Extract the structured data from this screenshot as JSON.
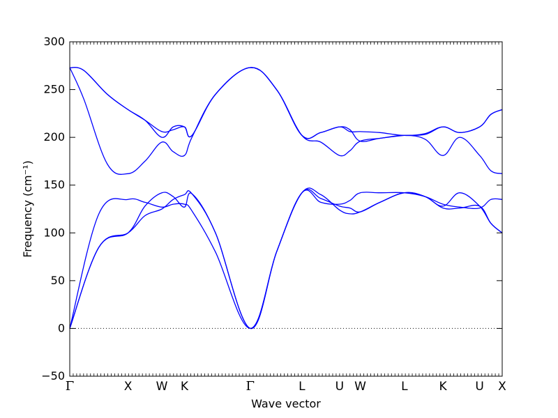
{
  "chart_data": {
    "type": "line",
    "title": "",
    "xlabel": "Wave vector",
    "ylabel": "Frequency (cm⁻¹)",
    "ylim": [
      -50,
      300
    ],
    "y_ticks": [
      -50,
      0,
      50,
      100,
      150,
      200,
      250,
      300
    ],
    "y_tick_labels": [
      "−50",
      "0",
      "50",
      "100",
      "150",
      "200",
      "250",
      "300"
    ],
    "xlim": [
      0,
      4.6
    ],
    "x_ticks": [
      {
        "label": "Γ",
        "x": 0.0
      },
      {
        "label": "X",
        "x": 0.62
      },
      {
        "label": "W",
        "x": 0.98
      },
      {
        "label": "K",
        "x": 1.22
      },
      {
        "label": "Γ",
        "x": 1.92
      },
      {
        "label": "L",
        "x": 2.47
      },
      {
        "label": "U",
        "x": 2.87
      },
      {
        "label": "W",
        "x": 3.09
      },
      {
        "label": "L",
        "x": 3.56
      },
      {
        "label": "K",
        "x": 3.97
      },
      {
        "label": "U",
        "x": 4.36
      },
      {
        "label": "X",
        "x": 4.6
      }
    ],
    "zero_line": {
      "y": 0,
      "style": "dotted"
    },
    "grid": false,
    "line_color": "#0000ff",
    "series": [
      {
        "values": [
          [
            0,
            0
          ],
          [
            0.31,
            85
          ],
          [
            0.62,
            100
          ],
          [
            0.8,
            118
          ],
          [
            0.98,
            125
          ],
          [
            1.1,
            135
          ],
          [
            1.22,
            140
          ],
          [
            1.3,
            141
          ],
          [
            1.55,
            100
          ],
          [
            1.92,
            0
          ],
          [
            2.2,
            80
          ],
          [
            2.47,
            142
          ],
          [
            2.67,
            136
          ],
          [
            2.87,
            128
          ],
          [
            2.98,
            126
          ],
          [
            3.09,
            122
          ],
          [
            3.3,
            132
          ],
          [
            3.56,
            142
          ],
          [
            3.78,
            138
          ],
          [
            3.97,
            126
          ],
          [
            4.15,
            126
          ],
          [
            4.36,
            128
          ],
          [
            4.48,
            110
          ],
          [
            4.6,
            100
          ]
        ]
      },
      {
        "values": [
          [
            0,
            0
          ],
          [
            0.31,
            85
          ],
          [
            0.62,
            100
          ],
          [
            0.8,
            128
          ],
          [
            0.98,
            142
          ],
          [
            1.1,
            138
          ],
          [
            1.22,
            127
          ],
          [
            1.3,
            141
          ],
          [
            1.55,
            100
          ],
          [
            1.92,
            0
          ],
          [
            2.2,
            80
          ],
          [
            2.47,
            142
          ],
          [
            2.67,
            140
          ],
          [
            2.87,
            124
          ],
          [
            2.98,
            120
          ],
          [
            3.09,
            122
          ],
          [
            3.3,
            132
          ],
          [
            3.56,
            142
          ],
          [
            3.78,
            138
          ],
          [
            3.97,
            128
          ],
          [
            4.15,
            142
          ],
          [
            4.36,
            128
          ],
          [
            4.48,
            110
          ],
          [
            4.6,
            100
          ]
        ]
      },
      {
        "values": [
          [
            0,
            0
          ],
          [
            0.31,
            120
          ],
          [
            0.62,
            135
          ],
          [
            0.8,
            132
          ],
          [
            0.98,
            127
          ],
          [
            1.1,
            130
          ],
          [
            1.22,
            130
          ],
          [
            1.3,
            123
          ],
          [
            1.55,
            80
          ],
          [
            1.92,
            0
          ],
          [
            2.2,
            80
          ],
          [
            2.47,
            142
          ],
          [
            2.67,
            132
          ],
          [
            2.87,
            130
          ],
          [
            2.98,
            134
          ],
          [
            3.09,
            142
          ],
          [
            3.3,
            142
          ],
          [
            3.56,
            142
          ],
          [
            3.78,
            138
          ],
          [
            3.97,
            130
          ],
          [
            4.15,
            127
          ],
          [
            4.36,
            126
          ],
          [
            4.48,
            135
          ],
          [
            4.6,
            135
          ]
        ]
      },
      {
        "values": [
          [
            0,
            273
          ],
          [
            0.15,
            240
          ],
          [
            0.4,
            172
          ],
          [
            0.62,
            162
          ],
          [
            0.8,
            175
          ],
          [
            0.98,
            195
          ],
          [
            1.1,
            185
          ],
          [
            1.22,
            181
          ],
          [
            1.3,
            200
          ],
          [
            1.55,
            245
          ],
          [
            1.92,
            273
          ],
          [
            2.2,
            250
          ],
          [
            2.47,
            202
          ],
          [
            2.67,
            195
          ],
          [
            2.87,
            181
          ],
          [
            2.98,
            186
          ],
          [
            3.09,
            196
          ],
          [
            3.3,
            199
          ],
          [
            3.56,
            202
          ],
          [
            3.78,
            198
          ],
          [
            3.97,
            181
          ],
          [
            4.15,
            200
          ],
          [
            4.36,
            181
          ],
          [
            4.48,
            165
          ],
          [
            4.6,
            162
          ]
        ]
      },
      {
        "values": [
          [
            0,
            273
          ],
          [
            0.15,
            270
          ],
          [
            0.4,
            245
          ],
          [
            0.62,
            229
          ],
          [
            0.8,
            218
          ],
          [
            0.98,
            206
          ],
          [
            1.1,
            208
          ],
          [
            1.22,
            211
          ],
          [
            1.3,
            202
          ],
          [
            1.55,
            245
          ],
          [
            1.92,
            273
          ],
          [
            2.2,
            250
          ],
          [
            2.47,
            202
          ],
          [
            2.67,
            205
          ],
          [
            2.87,
            211
          ],
          [
            2.98,
            208
          ],
          [
            3.09,
            196
          ],
          [
            3.3,
            199
          ],
          [
            3.56,
            202
          ],
          [
            3.78,
            203
          ],
          [
            3.97,
            211
          ],
          [
            4.15,
            205
          ],
          [
            4.36,
            211
          ],
          [
            4.48,
            224
          ],
          [
            4.6,
            229
          ]
        ]
      },
      {
        "values": [
          [
            0,
            273
          ],
          [
            0.15,
            270
          ],
          [
            0.4,
            245
          ],
          [
            0.62,
            229
          ],
          [
            0.8,
            218
          ],
          [
            0.98,
            200
          ],
          [
            1.1,
            211
          ],
          [
            1.22,
            211
          ],
          [
            1.3,
            202
          ],
          [
            1.55,
            245
          ],
          [
            1.92,
            273
          ],
          [
            2.2,
            250
          ],
          [
            2.47,
            202
          ],
          [
            2.67,
            205
          ],
          [
            2.87,
            211
          ],
          [
            2.98,
            206
          ],
          [
            3.09,
            206
          ],
          [
            3.3,
            205
          ],
          [
            3.56,
            202
          ],
          [
            3.78,
            204
          ],
          [
            3.97,
            211
          ],
          [
            4.15,
            205
          ],
          [
            4.36,
            211
          ],
          [
            4.48,
            224
          ],
          [
            4.6,
            229
          ]
        ]
      }
    ]
  }
}
